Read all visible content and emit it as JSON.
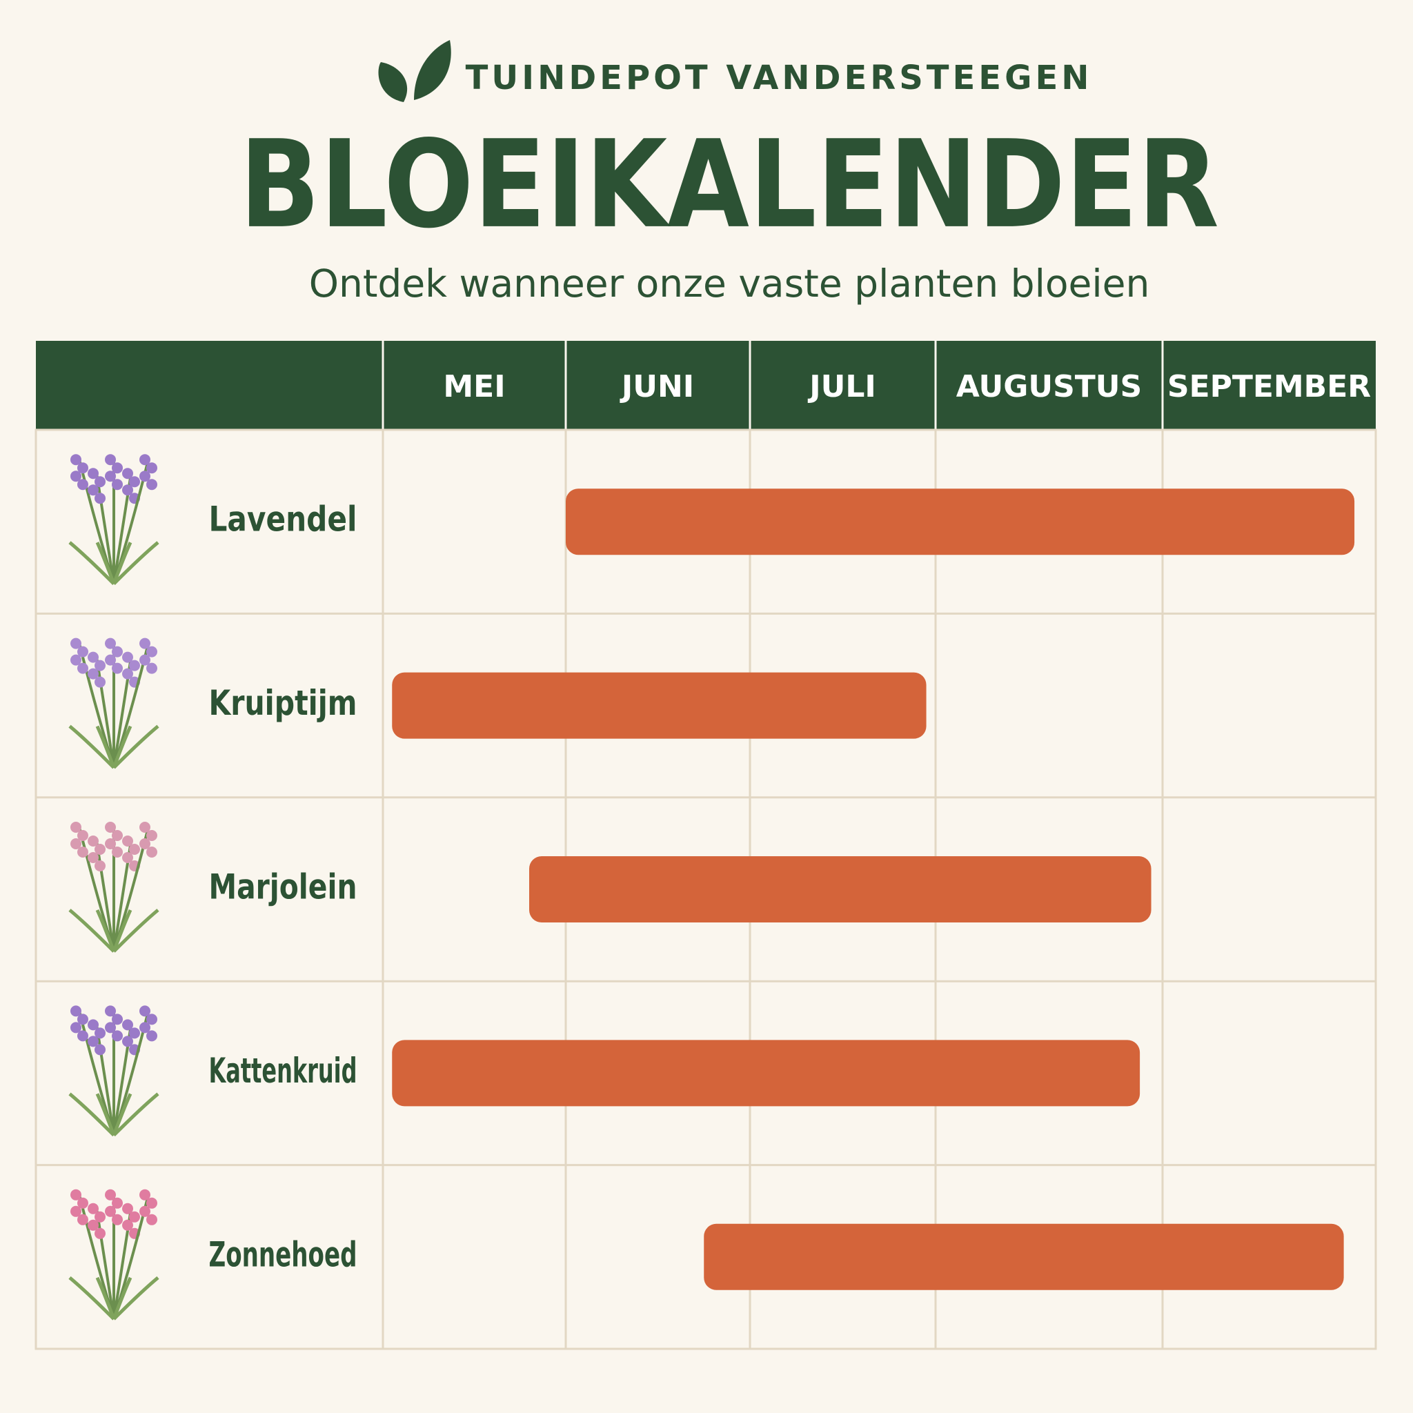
{
  "chart_data": {
    "type": "gantt",
    "brand": "TUINDEPOT VANDERSTEEGEN",
    "title": "BLOEIKALENDER",
    "subtitle": "Ontdek wanneer onze vaste planten bloeien",
    "categories": [
      "MEI",
      "JUNI",
      "JULI",
      "AUGUSTUS",
      "SEPTEMBER"
    ],
    "color": "#d4643a",
    "tasks": [
      {
        "name": "Lavendel",
        "start": 1.0,
        "end": 4.9
      },
      {
        "name": "Kruiptijm",
        "start": 0.05,
        "end": 2.95
      },
      {
        "name": "Marjolein",
        "start": 0.8,
        "end": 3.95
      },
      {
        "name": "Kattenkruid",
        "start": 0.05,
        "end": 3.9
      },
      {
        "name": "Zonnehoed",
        "start": 1.75,
        "end": 4.85
      }
    ]
  }
}
